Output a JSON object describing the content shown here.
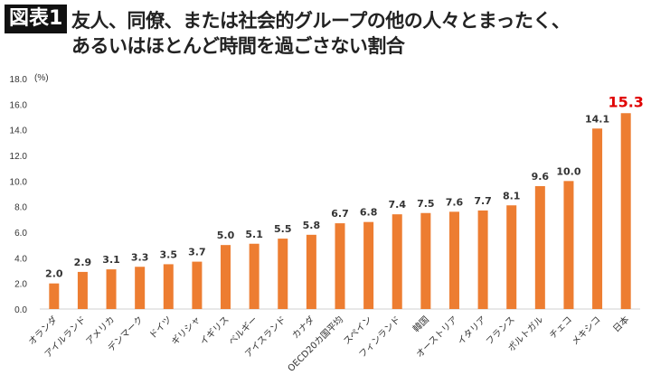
{
  "figure_label": "図表1",
  "chart_data": {
    "type": "bar",
    "title": [
      "友人、同僚、または社会的グループの他の人々とまったく、",
      "あるいはほとんど時間を過ごさない割合"
    ],
    "ylabel": "(%)",
    "ylim": [
      0,
      18
    ],
    "yticks": [
      "0.0",
      "2.0",
      "4.0",
      "6.0",
      "8.0",
      "10.0",
      "12.0",
      "14.0",
      "16.0",
      "18.0"
    ],
    "grid": false,
    "categories": [
      "オランダ",
      "アイルランド",
      "アメリカ",
      "デンマーク",
      "ドイツ",
      "ギリシャ",
      "イギリス",
      "ベルギー",
      "アイスランド",
      "カナダ",
      "OECD20カ国平均",
      "スペイン",
      "フィンランド",
      "韓国",
      "オーストリア",
      "イタリア",
      "フランス",
      "ポルトガル",
      "チェコ",
      "メキシコ",
      "日本"
    ],
    "values": [
      2.0,
      2.9,
      3.1,
      3.3,
      3.5,
      3.7,
      5.0,
      5.1,
      5.5,
      5.8,
      6.7,
      6.8,
      7.4,
      7.5,
      7.6,
      7.7,
      8.1,
      9.6,
      10.0,
      14.1,
      15.3
    ],
    "value_labels": [
      "2.0",
      "2.9",
      "3.1",
      "3.3",
      "3.5",
      "3.7",
      "5.0",
      "5.1",
      "5.5",
      "5.8",
      "6.7",
      "6.8",
      "7.4",
      "7.5",
      "7.6",
      "7.7",
      "8.1",
      "9.6",
      "10.0",
      "14.1",
      "15.3"
    ],
    "bar_color": "#ed7d31",
    "highlight_label_color": "#e00000",
    "highlight_index": 20
  }
}
